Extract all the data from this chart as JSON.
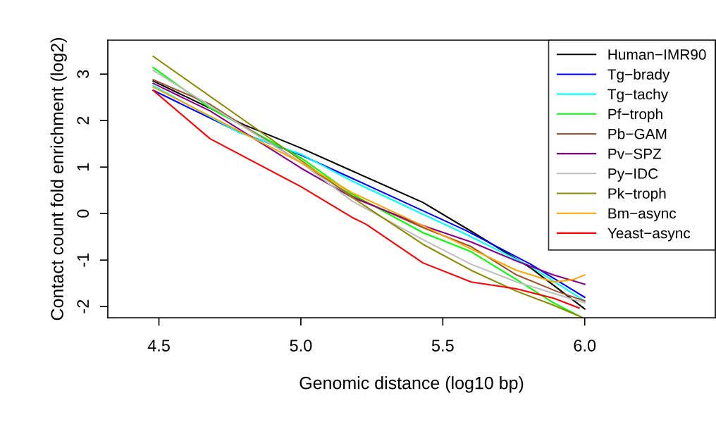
{
  "chart_data": {
    "type": "line",
    "xlabel": "Genomic distance (log10 bp)",
    "ylabel": "Contact count fold enrichment (log2)",
    "xlim": [
      4.32,
      6.46
    ],
    "ylim": [
      -2.24,
      3.73
    ],
    "xticks": [
      {
        "value": 4.5,
        "label": "4.5"
      },
      {
        "value": 5.0,
        "label": "5.0"
      },
      {
        "value": 5.5,
        "label": "5.5"
      },
      {
        "value": 6.0,
        "label": "6.0"
      }
    ],
    "yticks": [
      -2,
      -1,
      0,
      1,
      2,
      3
    ],
    "grid": false,
    "legend": "top right",
    "marker": "none",
    "line_style": "solid",
    "series": [
      {
        "name": "Human−IMR90",
        "color": "#000000",
        "x": [
          4.48,
          4.6,
          4.8,
          5.0,
          5.18,
          5.43,
          5.6,
          5.81,
          6.0
        ],
        "values": [
          2.85,
          2.5,
          1.91,
          1.41,
          0.92,
          0.24,
          -0.38,
          -1.17,
          -2.05
        ]
      },
      {
        "name": "Tg−brady",
        "color": "#0000ff",
        "x": [
          4.48,
          4.78,
          5.0,
          5.18,
          5.58,
          5.81,
          5.96,
          6.0
        ],
        "values": [
          2.65,
          1.76,
          1.26,
          0.76,
          -0.36,
          -1.09,
          -1.65,
          -1.8
        ]
      },
      {
        "name": "Tg−tachy",
        "color": "#00ffff",
        "x": [
          4.48,
          4.78,
          5.0,
          5.18,
          5.58,
          5.81,
          6.0
        ],
        "values": [
          2.75,
          1.75,
          1.28,
          0.7,
          -0.44,
          -1.14,
          -1.88
        ]
      },
      {
        "name": "Pf−troph",
        "color": "#00ff00",
        "x": [
          4.48,
          4.68,
          5.0,
          5.18,
          5.43,
          5.6,
          5.76,
          5.89,
          5.98
        ],
        "values": [
          3.14,
          2.27,
          1.2,
          0.42,
          -0.41,
          -0.82,
          -1.42,
          -1.92,
          -2.2
        ]
      },
      {
        "name": "Pb−GAM",
        "color": "#a0522d",
        "x": [
          4.48,
          4.68,
          5.0,
          5.18,
          5.43,
          5.6,
          5.76,
          5.9,
          6.0
        ],
        "values": [
          2.88,
          2.35,
          1.1,
          0.38,
          -0.3,
          -0.71,
          -1.32,
          -1.67,
          -1.88
        ]
      },
      {
        "name": "Pv−SPZ",
        "color": "#8b008b",
        "x": [
          4.48,
          4.68,
          5.0,
          5.18,
          5.43,
          5.6,
          5.76,
          5.89,
          6.0
        ],
        "values": [
          2.8,
          2.21,
          0.98,
          0.35,
          -0.26,
          -0.61,
          -1.02,
          -1.32,
          -1.52
        ]
      },
      {
        "name": "Py−IDC",
        "color": "#bebebe",
        "x": [
          4.48,
          5.0,
          5.18,
          5.43,
          5.6,
          5.76,
          6.0
        ],
        "values": [
          3.08,
          1.1,
          0.27,
          -0.56,
          -1.09,
          -1.47,
          -1.92
        ]
      },
      {
        "name": "Pk−troph",
        "color": "#8b8b00",
        "x": [
          4.48,
          5.0,
          5.18,
          5.43,
          5.6,
          5.76,
          5.89,
          5.99
        ],
        "values": [
          3.38,
          1.15,
          0.35,
          -0.66,
          -1.22,
          -1.67,
          -1.97,
          -2.23
        ]
      },
      {
        "name": "Bm−async",
        "color": "#ffa500",
        "x": [
          4.48,
          5.0,
          5.18,
          5.43,
          5.6,
          5.76,
          5.89,
          5.96,
          6.0
        ],
        "values": [
          2.72,
          1.1,
          0.45,
          -0.26,
          -0.76,
          -1.22,
          -1.47,
          -1.42,
          -1.32
        ]
      },
      {
        "name": "Yeast−async",
        "color": "#ff0000",
        "x": [
          4.48,
          4.68,
          5.0,
          5.18,
          5.23,
          5.43,
          5.6,
          5.76,
          5.89,
          5.98
        ],
        "values": [
          2.65,
          1.61,
          0.58,
          -0.08,
          -0.23,
          -1.06,
          -1.47,
          -1.62,
          -1.82,
          -2.03
        ]
      }
    ]
  }
}
